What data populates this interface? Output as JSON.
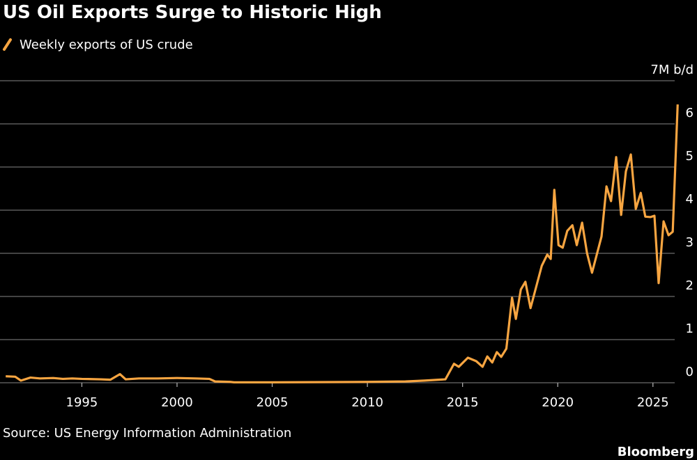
{
  "chart_data": {
    "type": "line",
    "title": "US Oil Exports Surge to Historic High",
    "source": "Source: US Energy Information Administration",
    "brand": "Bloomberg",
    "series": [
      {
        "name": "Weekly exports of US crude",
        "color": "#f7a541",
        "x": [
          1991.0,
          1991.5,
          1991.8,
          1992.3,
          1992.8,
          1993.5,
          1994.0,
          1994.5,
          1995.0,
          1996.0,
          1996.5,
          1997.0,
          1997.3,
          1998.0,
          1999.0,
          2000.0,
          2001.0,
          2001.7,
          2002.0,
          2002.8,
          2003.0,
          2005.0,
          2010.0,
          2012.0,
          2013.0,
          2014.1,
          2014.55,
          2014.8,
          2015.28,
          2015.72,
          2016.05,
          2016.3,
          2016.56,
          2016.8,
          2017.03,
          2017.3,
          2017.6,
          2017.8,
          2018.06,
          2018.3,
          2018.57,
          2019.16,
          2019.45,
          2019.63,
          2019.82,
          2020.04,
          2020.26,
          2020.5,
          2020.77,
          2021.0,
          2021.28,
          2021.54,
          2021.8,
          2022.3,
          2022.56,
          2022.8,
          2023.07,
          2023.33,
          2023.58,
          2023.84,
          2024.1,
          2024.36,
          2024.6,
          2024.87,
          2025.08,
          2025.3,
          2025.56,
          2025.82,
          2026.04,
          2026.3
        ],
        "values": [
          0.15,
          0.14,
          0.05,
          0.12,
          0.1,
          0.11,
          0.09,
          0.1,
          0.09,
          0.08,
          0.07,
          0.2,
          0.08,
          0.1,
          0.1,
          0.11,
          0.1,
          0.09,
          0.03,
          0.02,
          0.01,
          0.01,
          0.02,
          0.03,
          0.05,
          0.08,
          0.44,
          0.37,
          0.58,
          0.5,
          0.37,
          0.61,
          0.47,
          0.71,
          0.6,
          0.79,
          1.97,
          1.48,
          2.16,
          2.34,
          1.73,
          2.71,
          2.97,
          2.87,
          4.47,
          3.19,
          3.13,
          3.52,
          3.65,
          3.19,
          3.71,
          3.0,
          2.55,
          3.39,
          4.55,
          4.21,
          5.23,
          3.89,
          4.9,
          5.29,
          4.03,
          4.4,
          3.85,
          3.84,
          3.87,
          2.31,
          3.74,
          3.42,
          3.5,
          6.45
        ]
      }
    ],
    "xlim": [
      1990.7,
      2026.4
    ],
    "xticks": [
      1995,
      2000,
      2005,
      2010,
      2015,
      2020,
      2025
    ],
    "ylim": [
      0,
      7
    ],
    "yticks": [
      0,
      1,
      2,
      3,
      4,
      5,
      6,
      {
        "value": 7,
        "label": "7M b/d"
      }
    ],
    "grid": true
  }
}
